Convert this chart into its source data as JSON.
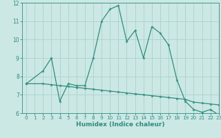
{
  "line1_x": [
    0,
    2,
    3,
    4,
    5,
    6,
    7,
    8,
    9,
    10,
    11,
    12,
    13,
    14,
    15,
    16,
    17,
    18,
    19,
    20,
    21,
    22,
    23
  ],
  "line1_y": [
    7.6,
    8.3,
    9.0,
    6.65,
    7.6,
    7.5,
    7.5,
    9.0,
    11.0,
    11.65,
    11.85,
    9.9,
    10.5,
    9.0,
    10.7,
    10.35,
    9.7,
    7.8,
    6.65,
    6.2,
    6.05,
    6.2,
    5.9
  ],
  "line2_x": [
    0,
    2,
    3,
    4,
    5,
    6,
    7,
    8,
    9,
    10,
    11,
    12,
    13,
    14,
    15,
    16,
    17,
    18,
    19,
    20,
    21,
    22,
    23
  ],
  "line2_y": [
    7.6,
    7.6,
    7.55,
    7.5,
    7.45,
    7.4,
    7.35,
    7.3,
    7.25,
    7.2,
    7.15,
    7.1,
    7.05,
    7.0,
    6.95,
    6.9,
    6.85,
    6.8,
    6.75,
    6.6,
    6.55,
    6.5,
    6.45
  ],
  "line_color": "#2d8c7e",
  "bg_color": "#cce8e4",
  "grid_color": "#afd4d0",
  "xlabel": "Humidex (Indice chaleur)",
  "ylim": [
    6,
    12
  ],
  "xlim": [
    -0.5,
    23
  ],
  "yticks": [
    6,
    7,
    8,
    9,
    10,
    11,
    12
  ],
  "xticks": [
    0,
    1,
    2,
    3,
    4,
    5,
    6,
    7,
    8,
    9,
    10,
    11,
    12,
    13,
    14,
    15,
    16,
    17,
    18,
    19,
    20,
    21,
    22,
    23
  ]
}
